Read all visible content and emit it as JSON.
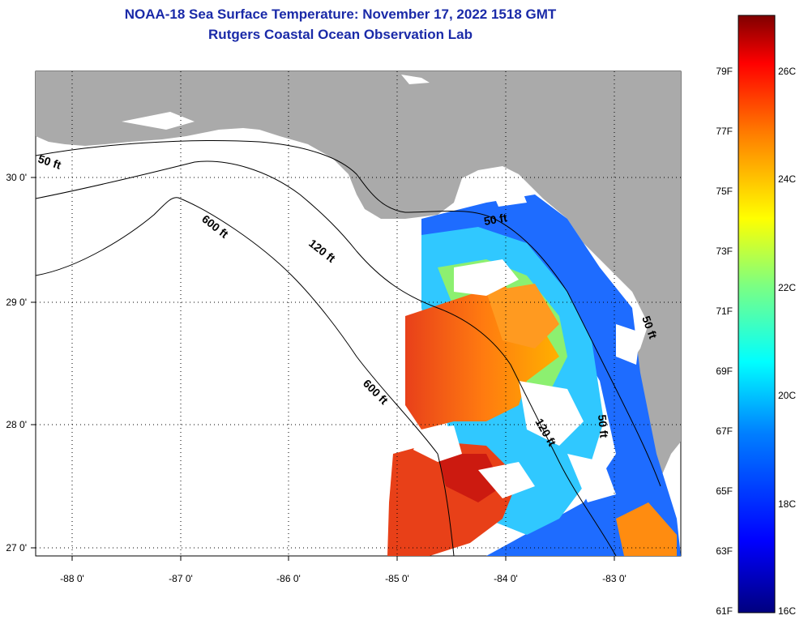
{
  "title_line1": "NOAA-18 Sea Surface Temperature:  November 17, 2022 1518 GMT",
  "title_line2": "Rutgers Coastal Ocean Observation Lab",
  "map": {
    "lon_labels": [
      "-88 0'",
      "-87 0'",
      "-86 0'",
      "-85 0'",
      "-84 0'",
      "-83 0'"
    ],
    "lat_labels": [
      "30 0'",
      "29 0'",
      "28 0'",
      "27 0'"
    ],
    "contour_labels": [
      "50 ft",
      "600 ft",
      "120 ft",
      "50 ft",
      "600 ft",
      "120 ft",
      "50 ft",
      "50 ft"
    ]
  },
  "colorbar": {
    "f_labels": [
      "79F",
      "77F",
      "75F",
      "73F",
      "71F",
      "69F",
      "67F",
      "65F",
      "63F",
      "61F"
    ],
    "c_labels": [
      "26C",
      "24C",
      "22C",
      "20C",
      "18C",
      "16C"
    ],
    "colors": [
      "#00007f",
      "#0000ff",
      "#007fff",
      "#00ffff",
      "#7fff7f",
      "#ffff00",
      "#ff7f00",
      "#ff0000",
      "#7f0000"
    ]
  },
  "colors": {
    "title": "#1a2aa8",
    "land": "#aaaaaa",
    "water_background": "#ffffff"
  }
}
